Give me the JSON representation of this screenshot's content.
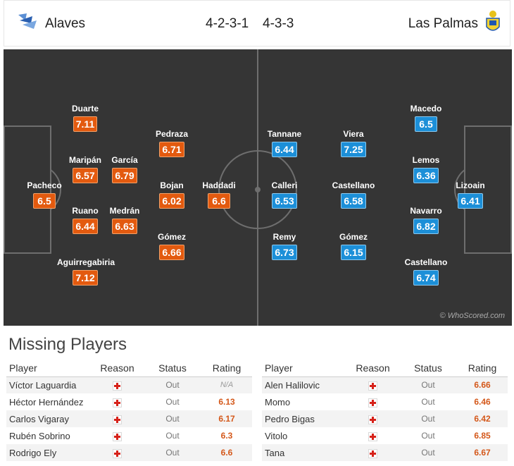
{
  "match": {
    "home_team": "Alaves",
    "away_team": "Las Palmas",
    "home_formation": "4-2-3-1",
    "away_formation": "4-3-3"
  },
  "colors": {
    "home_rating": "#e35a0f",
    "away_rating": "#1c8fd8",
    "pitch": "#353535"
  },
  "pitch": {
    "watermark": "© WhoScored.com",
    "home_players": [
      {
        "name": "Pacheco",
        "rating": "6.5"
      },
      {
        "name": "Duarte",
        "rating": "7.11"
      },
      {
        "name": "Maripán",
        "rating": "6.57"
      },
      {
        "name": "Ruano",
        "rating": "6.44"
      },
      {
        "name": "Aguirregabiria",
        "rating": "7.12"
      },
      {
        "name": "García",
        "rating": "6.79"
      },
      {
        "name": "Medrán",
        "rating": "6.63"
      },
      {
        "name": "Pedraza",
        "rating": "6.71"
      },
      {
        "name": "Bojan",
        "rating": "6.02"
      },
      {
        "name": "Gómez",
        "rating": "6.66"
      },
      {
        "name": "Haddadi",
        "rating": "6.6"
      }
    ],
    "away_players": [
      {
        "name": "Lizoain",
        "rating": "6.41"
      },
      {
        "name": "Macedo",
        "rating": "6.5"
      },
      {
        "name": "Lemos",
        "rating": "6.36"
      },
      {
        "name": "Navarro",
        "rating": "6.82"
      },
      {
        "name": "Castellano",
        "rating": "6.74"
      },
      {
        "name": "Viera",
        "rating": "7.25"
      },
      {
        "name": "Castellano",
        "rating": "6.58"
      },
      {
        "name": "Gómez",
        "rating": "6.15"
      },
      {
        "name": "Tannane",
        "rating": "6.44"
      },
      {
        "name": "Calleri",
        "rating": "6.53"
      },
      {
        "name": "Remy",
        "rating": "6.73"
      }
    ]
  },
  "missing": {
    "title": "Missing Players",
    "headers": {
      "player": "Player",
      "reason": "Reason",
      "status": "Status",
      "rating": "Rating"
    },
    "home": [
      {
        "player": "Víctor Laguardia",
        "reason_icon": "injury-icon",
        "status": "Out",
        "rating": "N/A"
      },
      {
        "player": "Héctor Hernández",
        "reason_icon": "injury-icon",
        "status": "Out",
        "rating": "6.13"
      },
      {
        "player": "Carlos Vigaray",
        "reason_icon": "injury-icon",
        "status": "Out",
        "rating": "6.17"
      },
      {
        "player": "Rubén Sobrino",
        "reason_icon": "injury-icon",
        "status": "Out",
        "rating": "6.3"
      },
      {
        "player": "Rodrigo Ely",
        "reason_icon": "injury-icon",
        "status": "Out",
        "rating": "6.6"
      }
    ],
    "away": [
      {
        "player": "Alen Halilovic",
        "reason_icon": "injury-icon",
        "status": "Out",
        "rating": "6.66"
      },
      {
        "player": "Momo",
        "reason_icon": "injury-icon",
        "status": "Out",
        "rating": "6.46"
      },
      {
        "player": "Pedro Bigas",
        "reason_icon": "injury-icon",
        "status": "Out",
        "rating": "6.42"
      },
      {
        "player": "Vitolo",
        "reason_icon": "injury-icon",
        "status": "Out",
        "rating": "6.85"
      },
      {
        "player": "Tana",
        "reason_icon": "injury-icon",
        "status": "Out",
        "rating": "6.67"
      }
    ]
  }
}
